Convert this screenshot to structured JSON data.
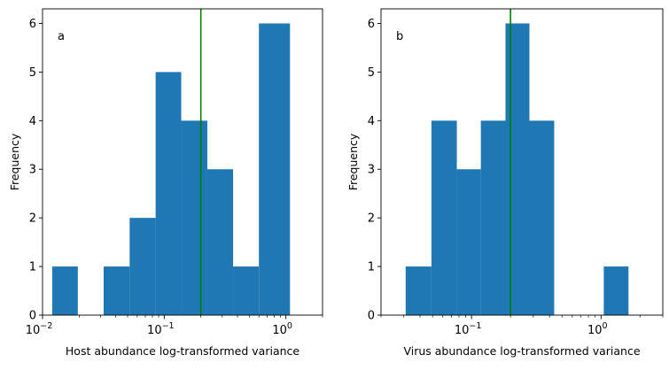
{
  "chart_data": [
    {
      "type": "histogram",
      "panel_label": "a",
      "xlabel": "Host abundance log-transformed variance",
      "ylabel": "Frequency",
      "xscale": "log",
      "xlim": [
        0.01,
        2.0
      ],
      "ylim": [
        0,
        6.3
      ],
      "xticks": [
        {
          "value": 0.01,
          "base": "10",
          "exp": "−2"
        },
        {
          "value": 0.1,
          "base": "10",
          "exp": "−1"
        },
        {
          "value": 1,
          "base": "10",
          "exp": "0"
        }
      ],
      "yticks": [
        "0",
        "1",
        "2",
        "3",
        "4",
        "5",
        "6"
      ],
      "bar_color": "#1f77b4",
      "vline": {
        "x": 0.2,
        "color": "#008000"
      },
      "bins": [
        {
          "x0": 0.012,
          "x1": 0.0195,
          "count": 1
        },
        {
          "x0": 0.0195,
          "x1": 0.0318,
          "count": 0
        },
        {
          "x0": 0.0318,
          "x1": 0.052,
          "count": 1
        },
        {
          "x0": 0.052,
          "x1": 0.085,
          "count": 2
        },
        {
          "x0": 0.085,
          "x1": 0.138,
          "count": 5
        },
        {
          "x0": 0.138,
          "x1": 0.226,
          "count": 4
        },
        {
          "x0": 0.226,
          "x1": 0.368,
          "count": 3
        },
        {
          "x0": 0.368,
          "x1": 0.6,
          "count": 1
        },
        {
          "x0": 0.6,
          "x1": 1.08,
          "count": 6
        }
      ]
    },
    {
      "type": "histogram",
      "panel_label": "b",
      "xlabel": "Virus abundance log-transformed variance",
      "ylabel": "Frequency",
      "xscale": "log",
      "xlim": [
        0.02,
        3.0
      ],
      "ylim": [
        0,
        6.3
      ],
      "xticks": [
        {
          "value": 0.1,
          "base": "10",
          "exp": "−1"
        },
        {
          "value": 1,
          "base": "10",
          "exp": "0"
        }
      ],
      "yticks": [
        "0",
        "1",
        "2",
        "3",
        "4",
        "5",
        "6"
      ],
      "bar_color": "#1f77b4",
      "vline": {
        "x": 0.2,
        "color": "#008000"
      },
      "bins": [
        {
          "x0": 0.031,
          "x1": 0.049,
          "count": 1
        },
        {
          "x0": 0.049,
          "x1": 0.077,
          "count": 4
        },
        {
          "x0": 0.077,
          "x1": 0.118,
          "count": 3
        },
        {
          "x0": 0.118,
          "x1": 0.183,
          "count": 4
        },
        {
          "x0": 0.183,
          "x1": 0.28,
          "count": 6
        },
        {
          "x0": 0.28,
          "x1": 0.435,
          "count": 4
        },
        {
          "x0": 0.435,
          "x1": 0.675,
          "count": 0
        },
        {
          "x0": 0.675,
          "x1": 1.05,
          "count": 0
        },
        {
          "x0": 1.05,
          "x1": 1.63,
          "count": 1
        }
      ]
    }
  ]
}
